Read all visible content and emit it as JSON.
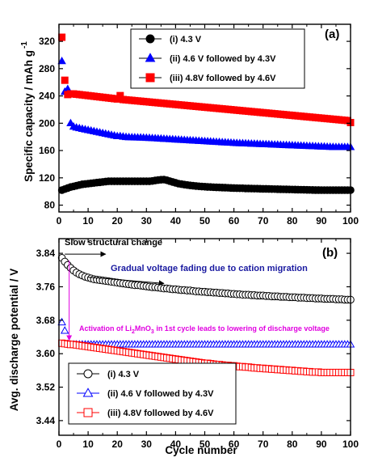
{
  "chart_data": [
    {
      "type": "scatter",
      "panel_label": "(a)",
      "xlabel": "",
      "ylabel": "Specific capacity / mAh g",
      "ylabel_superscript": "-1",
      "xlim": [
        0,
        100
      ],
      "ylim": [
        70,
        345
      ],
      "xticks": [
        0,
        10,
        20,
        30,
        40,
        50,
        60,
        70,
        80,
        90,
        100
      ],
      "yticks": [
        80,
        120,
        160,
        200,
        240,
        280,
        320
      ],
      "legend_position": "top-right",
      "x": [
        1,
        2,
        3,
        4,
        5,
        6,
        7,
        8,
        9,
        10,
        11,
        12,
        13,
        14,
        15,
        16,
        17,
        18,
        19,
        20,
        21,
        22,
        23,
        24,
        25,
        26,
        27,
        28,
        29,
        30,
        31,
        32,
        33,
        34,
        35,
        36,
        37,
        38,
        39,
        40,
        41,
        42,
        43,
        44,
        45,
        46,
        47,
        48,
        49,
        50,
        51,
        52,
        53,
        54,
        55,
        56,
        57,
        58,
        59,
        60,
        61,
        62,
        63,
        64,
        65,
        66,
        67,
        68,
        69,
        70,
        71,
        72,
        73,
        74,
        75,
        76,
        77,
        78,
        79,
        80,
        81,
        82,
        83,
        84,
        85,
        86,
        87,
        88,
        89,
        90,
        91,
        92,
        93,
        94,
        95,
        96,
        97,
        98,
        99,
        100
      ],
      "series": [
        {
          "name": "(i) 4.3 V",
          "color": "#000000",
          "marker": "circle-filled",
          "values": [
            102,
            103.5,
            105,
            106.5,
            107.5,
            108.5,
            109.5,
            110.5,
            111,
            111.5,
            112,
            112.5,
            113,
            113.5,
            114,
            114.5,
            115,
            115,
            115,
            115,
            115,
            115,
            115,
            115,
            115,
            115,
            115,
            115,
            115,
            115,
            115,
            115.4,
            116.1,
            116.8,
            117.2,
            117.4,
            116.5,
            115.2,
            113.9,
            112.7,
            111.5,
            110.8,
            110.1,
            109.5,
            108.9,
            108.4,
            108,
            107.6,
            107.3,
            107,
            106.7,
            106.5,
            106.3,
            106.1,
            105.9,
            105.8,
            105.6,
            105.4,
            105.2,
            105,
            104.9,
            104.8,
            104.7,
            104.5,
            104.4,
            104.3,
            104.2,
            104.1,
            104,
            103.9,
            103.8,
            103.7,
            103.6,
            103.5,
            103.4,
            103.3,
            103.2,
            103.1,
            103,
            102.9,
            102.8,
            102.7,
            102.6,
            102.5,
            102.4,
            102.3,
            102.2,
            102.1,
            102.1,
            102,
            102,
            102,
            102,
            102,
            102,
            102,
            102,
            102,
            102,
            102
          ]
        },
        {
          "name": "(ii) 4.6 V followed by 4.3V",
          "color": "#0000ff",
          "marker": "triangle-filled",
          "values": [
            291,
            246,
            250,
            200,
            195,
            193.6,
            192.7,
            191.8,
            190.9,
            190,
            189.1,
            188.2,
            187.3,
            186.4,
            185.5,
            184.6,
            183.7,
            182.8,
            181.9,
            181,
            181,
            180.4,
            179.8,
            179.5,
            179.3,
            179.2,
            179.1,
            179,
            178.8,
            178.6,
            178.4,
            178.1,
            177.9,
            177.6,
            177.4,
            177.1,
            176.9,
            176.6,
            176.4,
            176.1,
            175.9,
            175.6,
            175.4,
            175.1,
            174.9,
            174.6,
            174.4,
            174.1,
            173.9,
            173.6,
            173.4,
            173.1,
            172.9,
            172.6,
            172.4,
            172.1,
            171.9,
            171.6,
            171.4,
            171.1,
            170.9,
            170.7,
            170.6,
            170.4,
            170.2,
            170,
            169.9,
            169.7,
            169.5,
            169.3,
            169.2,
            169,
            168.8,
            168.6,
            168.5,
            168.3,
            168.1,
            167.9,
            167.8,
            167.6,
            167.4,
            167.2,
            167.1,
            166.9,
            166.7,
            166.5,
            166.4,
            166.2,
            166,
            165.8,
            165.7,
            165.5,
            165.3,
            165.1,
            165,
            165,
            165,
            165,
            165,
            165
          ]
        },
        {
          "name": "(iii) 4.8V followed by 4.6V",
          "color": "#ff0000",
          "marker": "square-filled",
          "values": [
            326,
            263,
            242,
            243,
            243,
            242.5,
            242,
            241.5,
            241,
            240.5,
            240,
            239.5,
            239,
            238.5,
            238,
            237.5,
            237,
            236.5,
            236,
            235.5,
            240.5,
            234.7,
            234.3,
            233.9,
            233.5,
            233.1,
            232.7,
            232.3,
            231.9,
            231.5,
            231.1,
            230.7,
            230.3,
            229.9,
            229.5,
            229.1,
            228.7,
            228.3,
            227.9,
            227.5,
            227.1,
            226.7,
            226.3,
            225.9,
            225.5,
            225.1,
            224.7,
            224.3,
            223.9,
            223.5,
            223.1,
            222.7,
            222.3,
            221.9,
            221.5,
            221.1,
            220.7,
            220.3,
            219.9,
            219.5,
            219.1,
            218.7,
            218.3,
            217.9,
            217.5,
            217.1,
            216.7,
            216.3,
            215.9,
            215.5,
            215.1,
            214.7,
            214.3,
            213.9,
            213.5,
            213.1,
            212.7,
            212.3,
            211.9,
            211.5,
            211.1,
            210.7,
            210.3,
            209.9,
            209.5,
            209.1,
            208.7,
            208.3,
            207.9,
            207.5,
            207.1,
            206.7,
            206.3,
            205.9,
            205.5,
            205.1,
            204.7,
            204.3,
            203.9,
            201
          ]
        }
      ]
    },
    {
      "type": "scatter",
      "panel_label": "(b)",
      "xlabel": "Cycle number",
      "ylabel": "Avg. discharge potential / V",
      "xlim": [
        0,
        100
      ],
      "ylim": [
        3.405,
        3.875
      ],
      "xticks": [
        0,
        10,
        20,
        30,
        40,
        50,
        60,
        70,
        80,
        90,
        100
      ],
      "yticks": [
        "3.44",
        "3.52",
        "3.60",
        "3.68",
        "3.76",
        "3.84"
      ],
      "legend_position": "bottom-left",
      "x": [
        1,
        2,
        3,
        4,
        5,
        6,
        7,
        8,
        9,
        10,
        11,
        12,
        13,
        14,
        15,
        16,
        17,
        18,
        19,
        20,
        21,
        22,
        23,
        24,
        25,
        26,
        27,
        28,
        29,
        30,
        31,
        32,
        33,
        34,
        35,
        36,
        37,
        38,
        39,
        40,
        41,
        42,
        43,
        44,
        45,
        46,
        47,
        48,
        49,
        50,
        51,
        52,
        53,
        54,
        55,
        56,
        57,
        58,
        59,
        60,
        61,
        62,
        63,
        64,
        65,
        66,
        67,
        68,
        69,
        70,
        71,
        72,
        73,
        74,
        75,
        76,
        77,
        78,
        79,
        80,
        81,
        82,
        83,
        84,
        85,
        86,
        87,
        88,
        89,
        90,
        91,
        92,
        93,
        94,
        95,
        96,
        97,
        98,
        99,
        100
      ],
      "series": [
        {
          "name": "(i) 4.3 V",
          "color": "#000000",
          "marker": "circle-open",
          "values": [
            3.829,
            3.82,
            3.812,
            3.805,
            3.799,
            3.794,
            3.79,
            3.787,
            3.784,
            3.782,
            3.78,
            3.778,
            3.777,
            3.776,
            3.775,
            3.774,
            3.773,
            3.772,
            3.771,
            3.77,
            3.769,
            3.768,
            3.767,
            3.766,
            3.765,
            3.764,
            3.764,
            3.763,
            3.762,
            3.761,
            3.76,
            3.759,
            3.759,
            3.758,
            3.757,
            3.756,
            3.756,
            3.755,
            3.754,
            3.754,
            3.753,
            3.752,
            3.752,
            3.751,
            3.751,
            3.75,
            3.749,
            3.749,
            3.748,
            3.748,
            3.747,
            3.747,
            3.746,
            3.746,
            3.745,
            3.745,
            3.744,
            3.744,
            3.743,
            3.743,
            3.742,
            3.742,
            3.741,
            3.741,
            3.741,
            3.74,
            3.74,
            3.739,
            3.739,
            3.739,
            3.738,
            3.738,
            3.737,
            3.737,
            3.737,
            3.736,
            3.736,
            3.736,
            3.735,
            3.735,
            3.735,
            3.734,
            3.734,
            3.734,
            3.733,
            3.733,
            3.733,
            3.732,
            3.732,
            3.732,
            3.731,
            3.731,
            3.731,
            3.731,
            3.73,
            3.73,
            3.73,
            3.729,
            3.729,
            3.729
          ]
        },
        {
          "name": "(ii) 4.6 V followed by 4.3V",
          "color": "#0000ff",
          "marker": "triangle-open",
          "values": [
            3.675,
            3.655,
            3.623,
            3.621,
            3.622,
            3.622,
            3.622,
            3.622,
            3.622,
            3.622,
            3.622,
            3.622,
            3.622,
            3.622,
            3.622,
            3.622,
            3.622,
            3.622,
            3.622,
            3.622,
            3.622,
            3.622,
            3.622,
            3.622,
            3.622,
            3.622,
            3.622,
            3.622,
            3.622,
            3.622,
            3.622,
            3.622,
            3.622,
            3.622,
            3.622,
            3.622,
            3.622,
            3.622,
            3.622,
            3.622,
            3.622,
            3.622,
            3.622,
            3.622,
            3.622,
            3.622,
            3.622,
            3.622,
            3.622,
            3.622,
            3.622,
            3.622,
            3.622,
            3.622,
            3.622,
            3.622,
            3.622,
            3.622,
            3.622,
            3.622,
            3.622,
            3.622,
            3.622,
            3.622,
            3.622,
            3.622,
            3.622,
            3.622,
            3.622,
            3.622,
            3.622,
            3.622,
            3.622,
            3.622,
            3.622,
            3.622,
            3.622,
            3.622,
            3.622,
            3.622,
            3.622,
            3.622,
            3.622,
            3.622,
            3.622,
            3.622,
            3.622,
            3.622,
            3.622,
            3.622,
            3.622,
            3.622,
            3.622,
            3.622,
            3.622,
            3.622,
            3.622,
            3.622,
            3.622,
            3.622
          ]
        },
        {
          "name": "(iii) 4.8V followed by 4.6V",
          "color": "#ff0000",
          "marker": "square-open",
          "values": [
            3.625,
            3.624,
            3.623,
            3.622,
            3.622,
            3.621,
            3.62,
            3.619,
            3.618,
            3.617,
            3.616,
            3.615,
            3.614,
            3.613,
            3.612,
            3.611,
            3.61,
            3.609,
            3.608,
            3.607,
            3.606,
            3.605,
            3.604,
            3.603,
            3.602,
            3.601,
            3.6,
            3.599,
            3.598,
            3.597,
            3.596,
            3.595,
            3.594,
            3.593,
            3.592,
            3.591,
            3.59,
            3.589,
            3.588,
            3.587,
            3.586,
            3.585,
            3.584,
            3.583,
            3.582,
            3.581,
            3.58,
            3.579,
            3.578,
            3.577,
            3.577,
            3.576,
            3.575,
            3.574,
            3.574,
            3.573,
            3.572,
            3.572,
            3.571,
            3.571,
            3.57,
            3.569,
            3.569,
            3.568,
            3.568,
            3.567,
            3.566,
            3.566,
            3.565,
            3.565,
            3.564,
            3.564,
            3.563,
            3.563,
            3.562,
            3.562,
            3.561,
            3.561,
            3.56,
            3.56,
            3.559,
            3.559,
            3.558,
            3.558,
            3.557,
            3.557,
            3.556,
            3.556,
            3.556,
            3.555,
            3.555,
            3.555,
            3.555,
            3.555,
            3.555,
            3.555,
            3.555,
            3.555,
            3.555,
            3.555
          ]
        }
      ],
      "annotations": {
        "slow_change": {
          "text": "Slow structural change",
          "color": "#000000",
          "arrow": {
            "x_from": 2,
            "y_from": 3.838,
            "x_to": 16,
            "y_to": 3.838
          }
        },
        "fading": {
          "text": "Gradual voltage fading due to cation migration",
          "color": "#1a1aa0",
          "arrow": {
            "x_from": 10,
            "y_from": 3.783,
            "x_to": 36,
            "y_to": 3.768
          }
        },
        "activation": {
          "text_pre": "Activation of Li",
          "sub1": "2",
          "text_mid": "MnO",
          "sub2": "3",
          "text_post": " in 1st cycle leads to lowering of discharge voltage",
          "color": "#e000e0",
          "arrow": {
            "x_from": 3.5,
            "y_from": 3.823,
            "x_to": 3.5,
            "y_to": 3.632
          }
        }
      }
    }
  ]
}
